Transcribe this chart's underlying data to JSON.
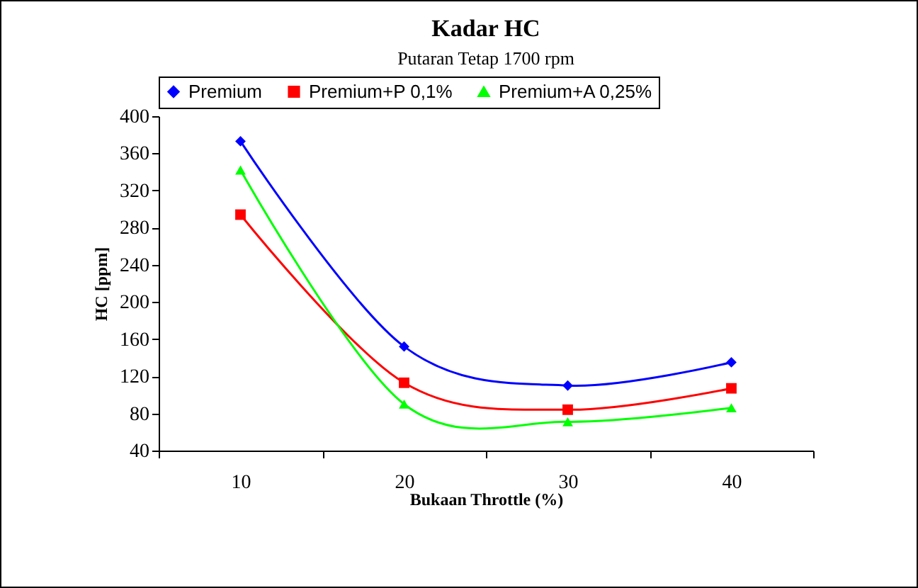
{
  "chart_data": {
    "type": "line",
    "title": "Kadar HC",
    "subtitle": "Putaran Tetap 1700 rpm",
    "xlabel": "Bukaan Throttle (%)",
    "ylabel": "HC [ppm]",
    "categories": [
      "10",
      "20",
      "30",
      "40"
    ],
    "series": [
      {
        "name": "Premium",
        "color": "#0000ff",
        "marker": "diamond",
        "values": [
          373,
          152,
          110,
          135
        ]
      },
      {
        "name": "Premium+P 0,1%",
        "color": "#ff0000",
        "marker": "square",
        "values": [
          294,
          113,
          84,
          107
        ]
      },
      {
        "name": "Premium+A 0,25%",
        "color": "#00ff00",
        "marker": "triangle",
        "values": [
          342,
          90,
          71,
          86
        ]
      }
    ],
    "ylim": [
      40,
      400
    ],
    "yticks": [
      40,
      80,
      120,
      160,
      200,
      240,
      280,
      320,
      360,
      400
    ],
    "grid": false,
    "legend": "top"
  }
}
